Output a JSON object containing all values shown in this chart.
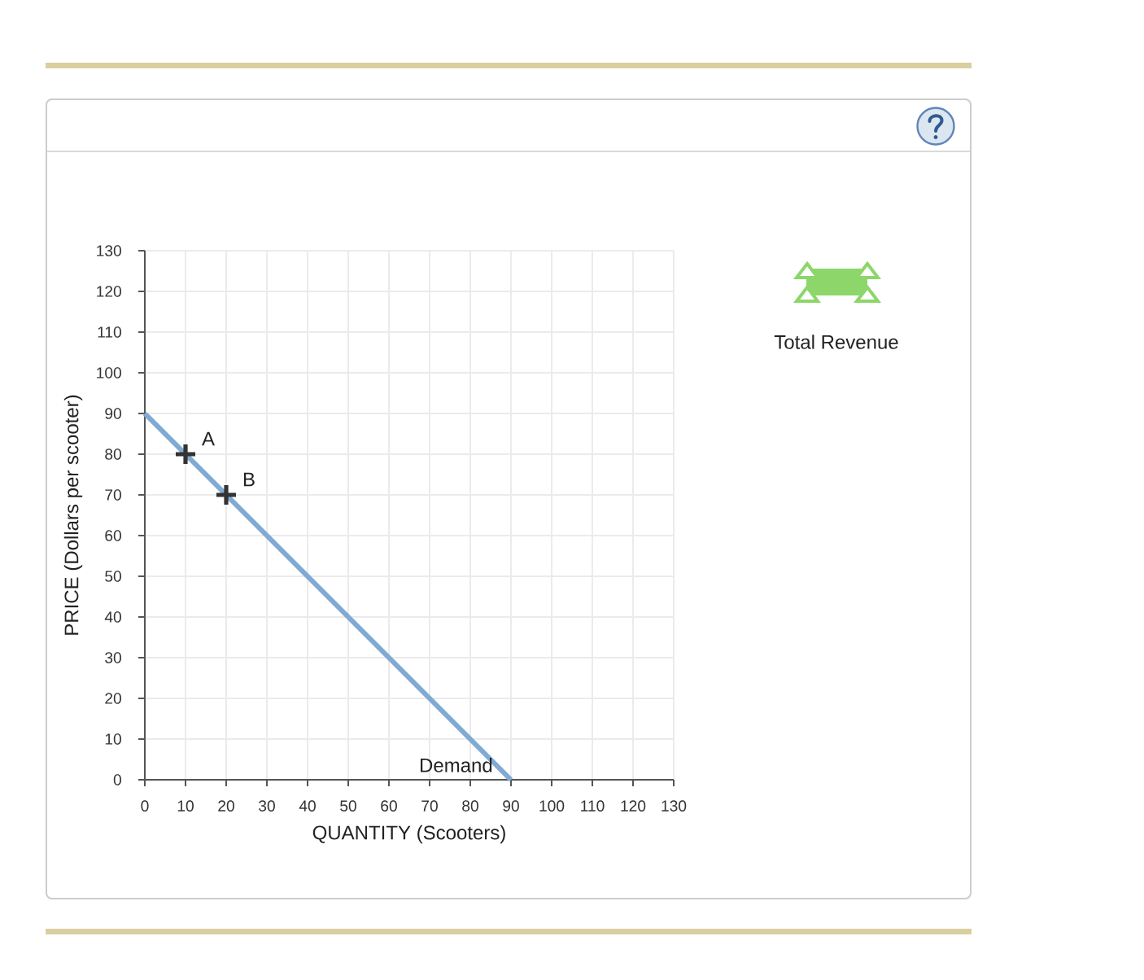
{
  "chart_data": {
    "type": "line",
    "xlabel": "QUANTITY (Scooters)",
    "ylabel": "PRICE (Dollars per scooter)",
    "series": [
      {
        "name": "Demand",
        "color": "#80aad3",
        "x": [
          0,
          90
        ],
        "values": [
          90,
          0
        ]
      },
      {
        "type": "scatter",
        "color": "#333333",
        "x": [
          10,
          20
        ],
        "values": [
          80,
          70
        ],
        "marker": "cross"
      }
    ],
    "xlim": [
      0,
      130
    ],
    "ylim": [
      0,
      130
    ],
    "xticks": [
      0,
      10,
      20,
      30,
      40,
      50,
      60,
      70,
      80,
      90,
      100,
      110,
      120,
      130
    ],
    "yticks": [
      0,
      10,
      20,
      30,
      40,
      50,
      60,
      70,
      80,
      90,
      100,
      110,
      120,
      130
    ],
    "grid": true,
    "annotations": [
      {
        "text": "A",
        "x": 10,
        "y": 80
      },
      {
        "text": "B",
        "x": 20,
        "y": 70
      },
      "Total Revenue"
    ]
  }
}
